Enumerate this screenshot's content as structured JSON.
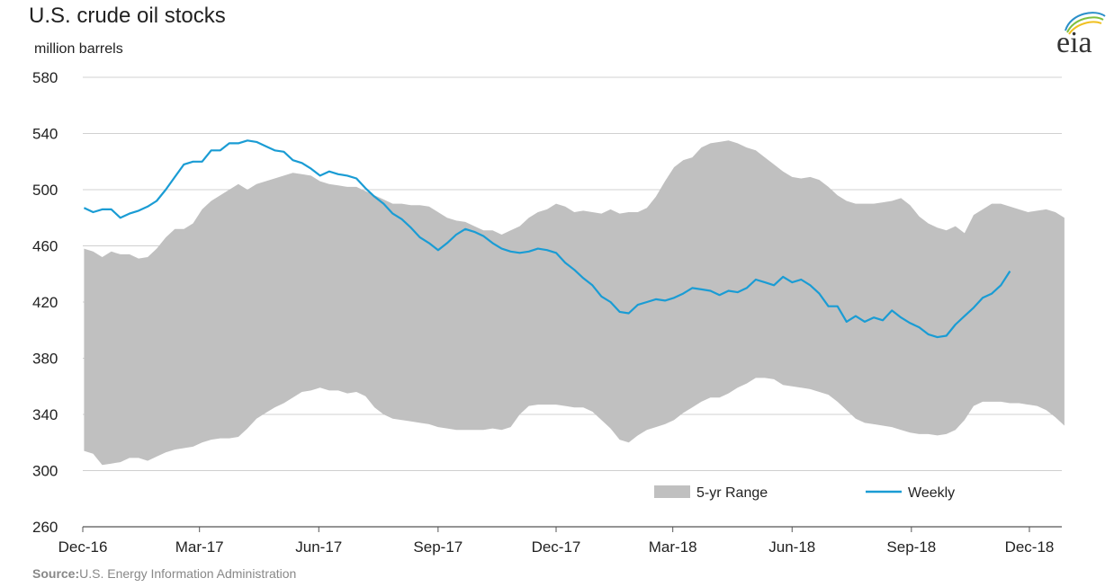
{
  "title": "U.S. crude oil stocks",
  "unit": "million barrels",
  "source_label": "Source:",
  "source_text": "U.S. Energy Information Administration",
  "logo_text": "eia",
  "colors": {
    "range": "#c0c0c0",
    "weekly": "#1a9cd4",
    "grid": "#d0d0d0",
    "axis": "#555555"
  },
  "chart_data": {
    "type": "area",
    "title": "U.S. crude oil stocks",
    "ylabel": "million barrels",
    "ylim": [
      260,
      580
    ],
    "yticks": [
      260,
      300,
      340,
      380,
      420,
      460,
      500,
      540,
      580
    ],
    "xlim": [
      "2016-12-01",
      "2018-12-26"
    ],
    "xtick_labels": [
      {
        "date": "2016-12-01",
        "label": "Dec-16"
      },
      {
        "date": "2017-03-01",
        "label": "Mar-17"
      },
      {
        "date": "2017-06-01",
        "label": "Jun-17"
      },
      {
        "date": "2017-09-01",
        "label": "Sep-17"
      },
      {
        "date": "2017-12-01",
        "label": "Dec-17"
      },
      {
        "date": "2018-03-01",
        "label": "Mar-18"
      },
      {
        "date": "2018-06-01",
        "label": "Jun-18"
      },
      {
        "date": "2018-09-01",
        "label": "Sep-18"
      },
      {
        "date": "2018-12-01",
        "label": "Dec-18"
      }
    ],
    "grid": true,
    "legend_position": "bottom-right",
    "series": [
      {
        "name": "5-yr Range",
        "kind": "band",
        "points": [
          [
            "2016-12-02",
            458,
            314
          ],
          [
            "2016-12-09",
            456,
            312
          ],
          [
            "2016-12-16",
            452,
            304
          ],
          [
            "2016-12-23",
            456,
            305
          ],
          [
            "2016-12-30",
            454,
            306
          ],
          [
            "2017-01-06",
            454,
            309
          ],
          [
            "2017-01-13",
            451,
            309
          ],
          [
            "2017-01-20",
            452,
            307
          ],
          [
            "2017-01-27",
            458,
            310
          ],
          [
            "2017-02-03",
            466,
            313
          ],
          [
            "2017-02-10",
            472,
            315
          ],
          [
            "2017-02-17",
            472,
            316
          ],
          [
            "2017-02-24",
            476,
            317
          ],
          [
            "2017-03-03",
            486,
            320
          ],
          [
            "2017-03-10",
            492,
            322
          ],
          [
            "2017-03-17",
            496,
            323
          ],
          [
            "2017-03-24",
            500,
            323
          ],
          [
            "2017-03-31",
            504,
            324
          ],
          [
            "2017-04-07",
            500,
            330
          ],
          [
            "2017-04-14",
            504,
            337
          ],
          [
            "2017-04-21",
            506,
            341
          ],
          [
            "2017-04-28",
            508,
            345
          ],
          [
            "2017-05-05",
            510,
            348
          ],
          [
            "2017-05-12",
            512,
            352
          ],
          [
            "2017-05-19",
            511,
            356
          ],
          [
            "2017-05-26",
            510,
            357
          ],
          [
            "2017-06-02",
            506,
            359
          ],
          [
            "2017-06-09",
            504,
            357
          ],
          [
            "2017-06-16",
            503,
            357
          ],
          [
            "2017-06-23",
            502,
            355
          ],
          [
            "2017-06-30",
            502,
            356
          ],
          [
            "2017-07-07",
            499,
            353
          ],
          [
            "2017-07-14",
            496,
            345
          ],
          [
            "2017-07-21",
            493,
            340
          ],
          [
            "2017-07-28",
            490,
            337
          ],
          [
            "2017-08-04",
            490,
            336
          ],
          [
            "2017-08-11",
            489,
            335
          ],
          [
            "2017-08-18",
            489,
            334
          ],
          [
            "2017-08-25",
            488,
            333
          ],
          [
            "2017-09-01",
            484,
            331
          ],
          [
            "2017-09-08",
            480,
            330
          ],
          [
            "2017-09-15",
            478,
            329
          ],
          [
            "2017-09-22",
            477,
            329
          ],
          [
            "2017-09-29",
            474,
            329
          ],
          [
            "2017-10-06",
            471,
            329
          ],
          [
            "2017-10-13",
            471,
            330
          ],
          [
            "2017-10-20",
            468,
            329
          ],
          [
            "2017-10-27",
            471,
            331
          ],
          [
            "2017-11-03",
            474,
            340
          ],
          [
            "2017-11-10",
            480,
            346
          ],
          [
            "2017-11-17",
            484,
            347
          ],
          [
            "2017-11-24",
            486,
            347
          ],
          [
            "2017-12-01",
            490,
            347
          ],
          [
            "2017-12-08",
            488,
            346
          ],
          [
            "2017-12-15",
            484,
            345
          ],
          [
            "2017-12-22",
            485,
            345
          ],
          [
            "2017-12-29",
            484,
            342
          ],
          [
            "2018-01-05",
            483,
            336
          ],
          [
            "2018-01-12",
            486,
            330
          ],
          [
            "2018-01-19",
            483,
            322
          ],
          [
            "2018-01-26",
            484,
            320
          ],
          [
            "2018-02-02",
            484,
            325
          ],
          [
            "2018-02-09",
            487,
            329
          ],
          [
            "2018-02-16",
            495,
            331
          ],
          [
            "2018-02-23",
            506,
            333
          ],
          [
            "2018-03-02",
            516,
            336
          ],
          [
            "2018-03-09",
            521,
            341
          ],
          [
            "2018-03-16",
            523,
            345
          ],
          [
            "2018-03-23",
            530,
            349
          ],
          [
            "2018-03-30",
            533,
            352
          ],
          [
            "2018-04-06",
            534,
            352
          ],
          [
            "2018-04-13",
            535,
            355
          ],
          [
            "2018-04-20",
            533,
            359
          ],
          [
            "2018-04-27",
            530,
            362
          ],
          [
            "2018-05-04",
            528,
            366
          ],
          [
            "2018-05-11",
            523,
            366
          ],
          [
            "2018-05-18",
            518,
            365
          ],
          [
            "2018-05-25",
            513,
            361
          ],
          [
            "2018-06-01",
            509,
            360
          ],
          [
            "2018-06-08",
            508,
            359
          ],
          [
            "2018-06-15",
            509,
            358
          ],
          [
            "2018-06-22",
            507,
            356
          ],
          [
            "2018-06-29",
            502,
            354
          ],
          [
            "2018-07-06",
            496,
            349
          ],
          [
            "2018-07-13",
            492,
            343
          ],
          [
            "2018-07-20",
            490,
            337
          ],
          [
            "2018-07-27",
            490,
            334
          ],
          [
            "2018-08-03",
            490,
            333
          ],
          [
            "2018-08-10",
            491,
            332
          ],
          [
            "2018-08-17",
            492,
            331
          ],
          [
            "2018-08-24",
            494,
            329
          ],
          [
            "2018-08-31",
            489,
            327
          ],
          [
            "2018-09-07",
            481,
            326
          ],
          [
            "2018-09-14",
            476,
            326
          ],
          [
            "2018-09-21",
            473,
            325
          ],
          [
            "2018-09-28",
            471,
            326
          ],
          [
            "2018-10-05",
            474,
            329
          ],
          [
            "2018-10-12",
            469,
            336
          ],
          [
            "2018-10-19",
            482,
            346
          ],
          [
            "2018-10-26",
            486,
            349
          ],
          [
            "2018-11-02",
            490,
            349
          ],
          [
            "2018-11-09",
            490,
            349
          ],
          [
            "2018-11-16",
            488,
            348
          ],
          [
            "2018-11-23",
            486,
            348
          ],
          [
            "2018-11-30",
            484,
            347
          ],
          [
            "2018-12-07",
            485,
            346
          ],
          [
            "2018-12-14",
            486,
            343
          ],
          [
            "2018-12-21",
            484,
            338
          ],
          [
            "2018-12-28",
            480,
            332
          ]
        ]
      },
      {
        "name": "Weekly",
        "kind": "line",
        "points": [
          [
            "2016-12-02",
            487
          ],
          [
            "2016-12-09",
            484
          ],
          [
            "2016-12-16",
            486
          ],
          [
            "2016-12-23",
            486
          ],
          [
            "2016-12-30",
            480
          ],
          [
            "2017-01-06",
            483
          ],
          [
            "2017-01-13",
            485
          ],
          [
            "2017-01-20",
            488
          ],
          [
            "2017-01-27",
            492
          ],
          [
            "2017-02-03",
            500
          ],
          [
            "2017-02-10",
            509
          ],
          [
            "2017-02-17",
            518
          ],
          [
            "2017-02-24",
            520
          ],
          [
            "2017-03-03",
            520
          ],
          [
            "2017-03-10",
            528
          ],
          [
            "2017-03-17",
            528
          ],
          [
            "2017-03-24",
            533
          ],
          [
            "2017-03-31",
            533
          ],
          [
            "2017-04-07",
            535
          ],
          [
            "2017-04-14",
            534
          ],
          [
            "2017-04-21",
            531
          ],
          [
            "2017-04-28",
            528
          ],
          [
            "2017-05-05",
            527
          ],
          [
            "2017-05-12",
            521
          ],
          [
            "2017-05-19",
            519
          ],
          [
            "2017-05-26",
            515
          ],
          [
            "2017-06-02",
            510
          ],
          [
            "2017-06-09",
            513
          ],
          [
            "2017-06-16",
            511
          ],
          [
            "2017-06-23",
            510
          ],
          [
            "2017-06-30",
            508
          ],
          [
            "2017-07-07",
            501
          ],
          [
            "2017-07-14",
            495
          ],
          [
            "2017-07-21",
            490
          ],
          [
            "2017-07-28",
            483
          ],
          [
            "2017-08-04",
            479
          ],
          [
            "2017-08-11",
            473
          ],
          [
            "2017-08-18",
            466
          ],
          [
            "2017-08-25",
            462
          ],
          [
            "2017-09-01",
            457
          ],
          [
            "2017-09-08",
            462
          ],
          [
            "2017-09-15",
            468
          ],
          [
            "2017-09-22",
            472
          ],
          [
            "2017-09-29",
            470
          ],
          [
            "2017-10-06",
            467
          ],
          [
            "2017-10-13",
            462
          ],
          [
            "2017-10-20",
            458
          ],
          [
            "2017-10-27",
            456
          ],
          [
            "2017-11-03",
            455
          ],
          [
            "2017-11-10",
            456
          ],
          [
            "2017-11-17",
            458
          ],
          [
            "2017-11-24",
            457
          ],
          [
            "2017-12-01",
            455
          ],
          [
            "2017-12-08",
            448
          ],
          [
            "2017-12-15",
            443
          ],
          [
            "2017-12-22",
            437
          ],
          [
            "2017-12-29",
            432
          ],
          [
            "2018-01-05",
            424
          ],
          [
            "2018-01-12",
            420
          ],
          [
            "2018-01-19",
            413
          ],
          [
            "2018-01-26",
            412
          ],
          [
            "2018-02-02",
            418
          ],
          [
            "2018-02-09",
            420
          ],
          [
            "2018-02-16",
            422
          ],
          [
            "2018-02-23",
            421
          ],
          [
            "2018-03-02",
            423
          ],
          [
            "2018-03-09",
            426
          ],
          [
            "2018-03-16",
            430
          ],
          [
            "2018-03-23",
            429
          ],
          [
            "2018-03-30",
            428
          ],
          [
            "2018-04-06",
            425
          ],
          [
            "2018-04-13",
            428
          ],
          [
            "2018-04-20",
            427
          ],
          [
            "2018-04-27",
            430
          ],
          [
            "2018-05-04",
            436
          ],
          [
            "2018-05-11",
            434
          ],
          [
            "2018-05-18",
            432
          ],
          [
            "2018-05-25",
            438
          ],
          [
            "2018-06-01",
            434
          ],
          [
            "2018-06-08",
            436
          ],
          [
            "2018-06-15",
            432
          ],
          [
            "2018-06-22",
            426
          ],
          [
            "2018-06-29",
            417
          ],
          [
            "2018-07-06",
            417
          ],
          [
            "2018-07-13",
            406
          ],
          [
            "2018-07-20",
            410
          ],
          [
            "2018-07-27",
            406
          ],
          [
            "2018-08-03",
            409
          ],
          [
            "2018-08-10",
            407
          ],
          [
            "2018-08-17",
            414
          ],
          [
            "2018-08-24",
            409
          ],
          [
            "2018-08-31",
            405
          ],
          [
            "2018-09-07",
            402
          ],
          [
            "2018-09-14",
            397
          ],
          [
            "2018-09-21",
            395
          ],
          [
            "2018-09-28",
            396
          ],
          [
            "2018-10-05",
            404
          ],
          [
            "2018-10-12",
            410
          ],
          [
            "2018-10-19",
            416
          ],
          [
            "2018-10-26",
            423
          ],
          [
            "2018-11-02",
            426
          ],
          [
            "2018-11-09",
            432
          ],
          [
            "2018-11-16",
            442
          ]
        ]
      }
    ]
  }
}
